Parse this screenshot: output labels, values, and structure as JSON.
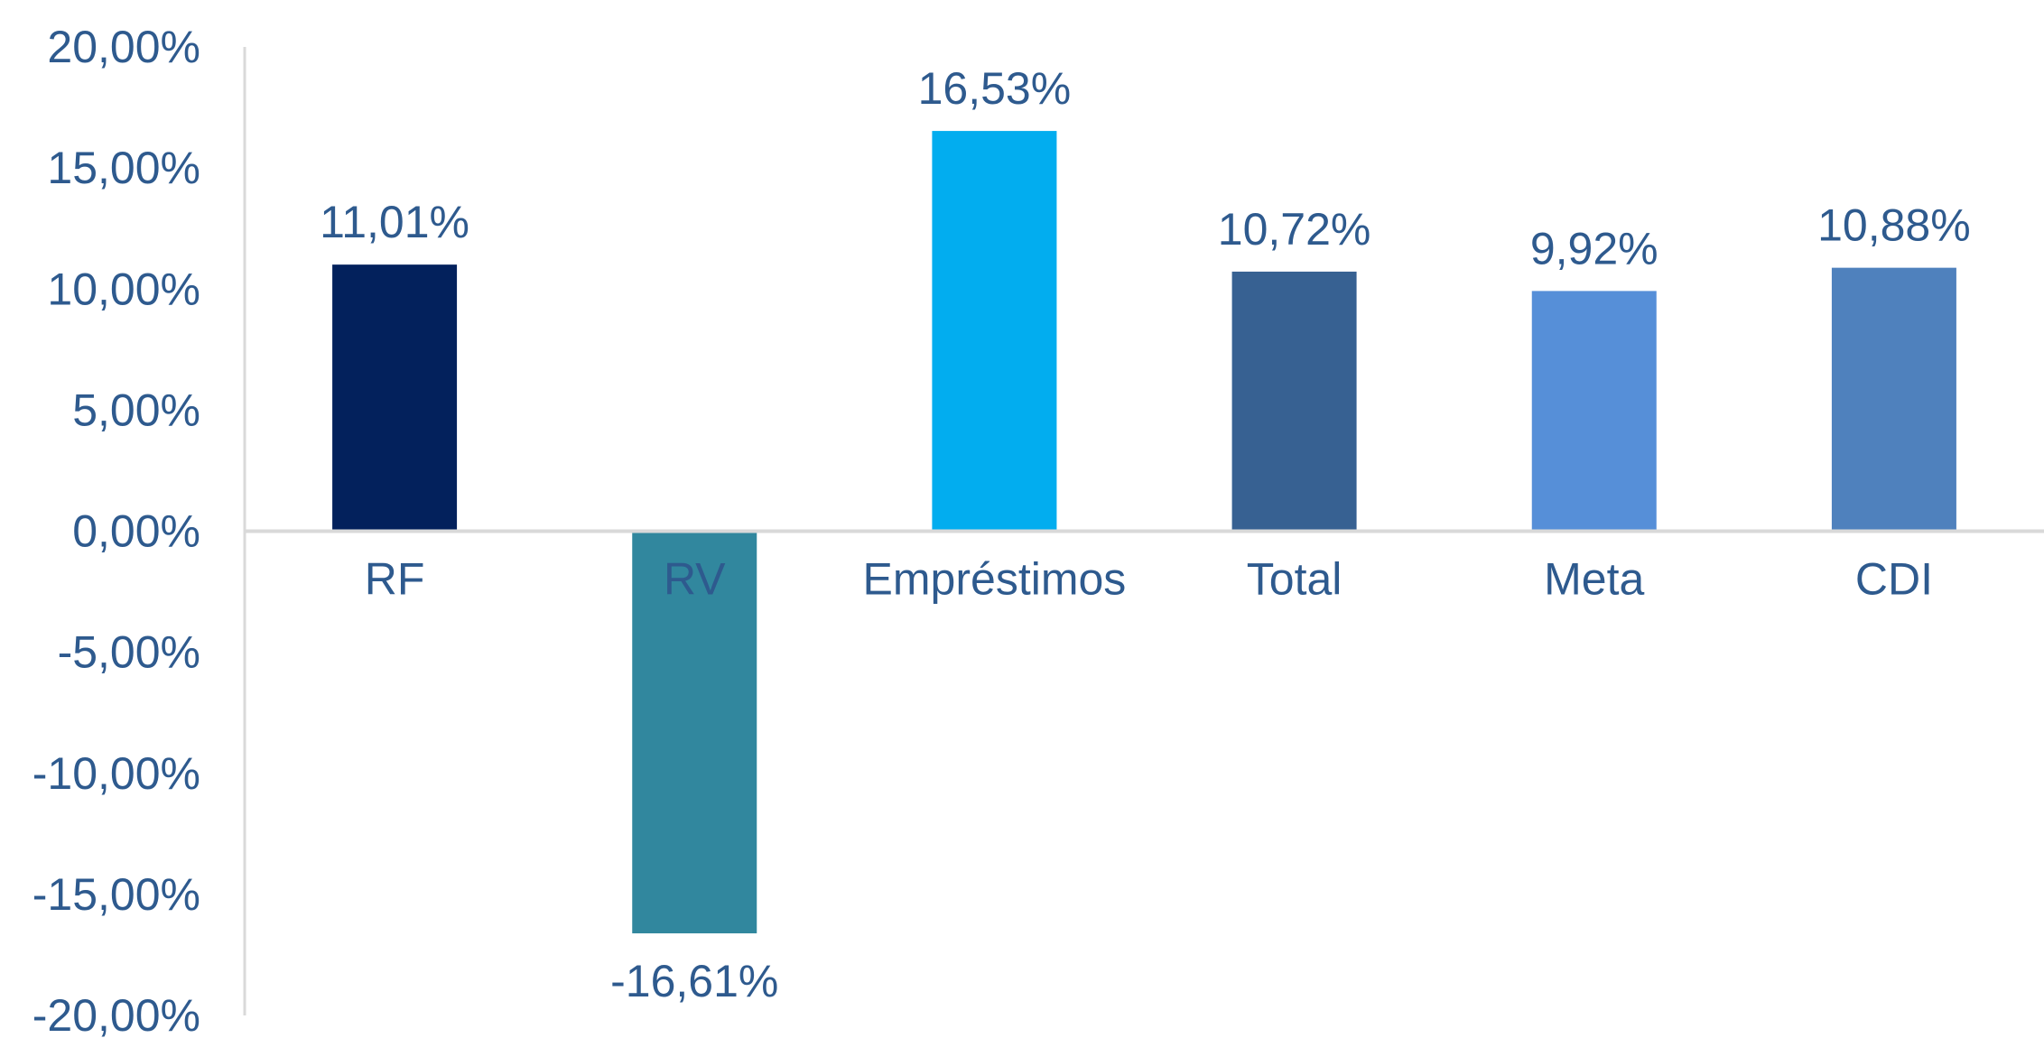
{
  "chart_data": {
    "type": "bar",
    "title": "",
    "xlabel": "",
    "ylabel": "",
    "categories": [
      "RF",
      "RV",
      "Empréstimos",
      "Total",
      "Meta",
      "CDI"
    ],
    "values": [
      11.01,
      -16.61,
      16.53,
      10.72,
      9.92,
      10.88
    ],
    "data_labels": [
      "11,01%",
      "-16,61%",
      "16,53%",
      "10,72%",
      "9,92%",
      "10,88%"
    ],
    "colors": [
      "#03215c",
      "#31879e",
      "#02adef",
      "#376192",
      "#568fd8",
      "#4f81bd"
    ],
    "ylim": [
      -20,
      20
    ],
    "y_ticks": [
      20,
      15,
      10,
      5,
      0,
      -5,
      -10,
      -15,
      -20
    ],
    "y_tick_labels": [
      "20,00%",
      "15,00%",
      "10,00%",
      "5,00%",
      "0,00%",
      "-5,00%",
      "-10,00%",
      "-15,00%",
      "-20,00%"
    ],
    "grid": false,
    "legend": "none",
    "text_color": "#2e5a8e",
    "axis_color": "#d9d9d9"
  }
}
